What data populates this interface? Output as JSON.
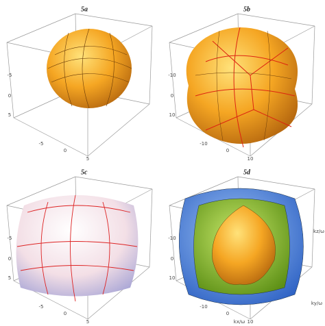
{
  "panels": [
    {
      "label": "5a",
      "ticks": [
        "-5",
        "0",
        "5",
        "-5",
        "0",
        "5"
      ]
    },
    {
      "label": "5b",
      "ticks": [
        "-10",
        "0",
        "10",
        "-10",
        "0",
        "10"
      ]
    },
    {
      "label": "5c",
      "ticks": [
        "-5",
        "0",
        "5",
        "-5",
        "0",
        "5"
      ]
    },
    {
      "label": "5d",
      "ticks": [
        "-10",
        "0",
        "10",
        "-10",
        "0",
        "10"
      ],
      "axis_labels": [
        "kz/ω",
        "ky/ω",
        "kx/ω"
      ]
    }
  ]
}
